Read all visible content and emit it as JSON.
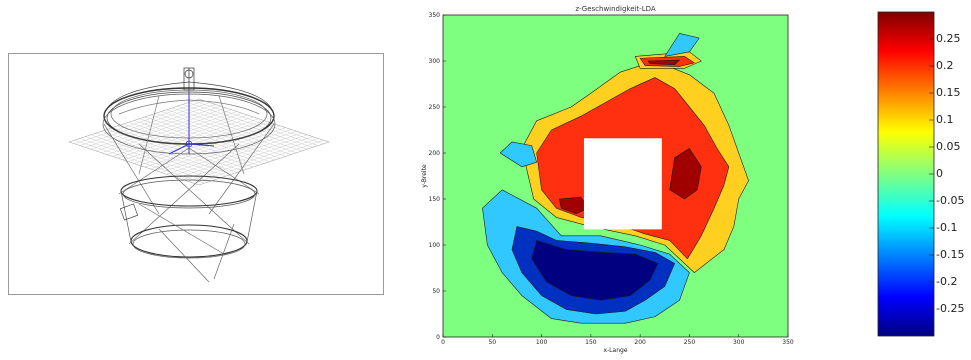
{
  "wireframe_figure": {
    "description_icon": "wireframe-apparatus-icon"
  },
  "chart_data": [
    {
      "type": "heatmap",
      "title": "z-Geschwindigkeit-LDA",
      "xlabel": "x-Lange",
      "ylabel": "y-Breite",
      "xlim": [
        0,
        350
      ],
      "ylim": [
        0,
        350
      ],
      "x_ticks": [
        0,
        50,
        100,
        150,
        200,
        250,
        300,
        350
      ],
      "y_ticks": [
        0,
        50,
        100,
        150,
        200,
        250,
        300,
        350
      ],
      "grid": false,
      "background_color": "#7fff7f",
      "no_data_region": {
        "x": [
          143,
          222
        ],
        "y": [
          117,
          216
        ]
      },
      "regions": [
        {
          "level": 0.05,
          "color": "#ffd020",
          "polygon": [
            [
              92,
              150
            ],
            [
              80,
              205
            ],
            [
              95,
              235
            ],
            [
              130,
              250
            ],
            [
              150,
              265
            ],
            [
              180,
              288
            ],
            [
              215,
              300
            ],
            [
              250,
              285
            ],
            [
              275,
              265
            ],
            [
              290,
              230
            ],
            [
              300,
              200
            ],
            [
              310,
              170
            ],
            [
              300,
              150
            ],
            [
              295,
              120
            ],
            [
              285,
              95
            ],
            [
              255,
              70
            ],
            [
              225,
              100
            ],
            [
              195,
              110
            ],
            [
              150,
              120
            ],
            [
              115,
              130
            ]
          ]
        },
        {
          "level": 0.05,
          "color": "#ffd020",
          "polygon": [
            [
              195,
              305
            ],
            [
              250,
              310
            ],
            [
              262,
              300
            ],
            [
              245,
              292
            ],
            [
              200,
              292
            ]
          ]
        },
        {
          "level": 0.2,
          "color": "#ff3010",
          "polygon": [
            [
              100,
              160
            ],
            [
              95,
              200
            ],
            [
              110,
              225
            ],
            [
              140,
              240
            ],
            [
              165,
              255
            ],
            [
              190,
              270
            ],
            [
              215,
              282
            ],
            [
              235,
              270
            ],
            [
              250,
              250
            ],
            [
              265,
              230
            ],
            [
              278,
              205
            ],
            [
              290,
              185
            ],
            [
              285,
              165
            ],
            [
              275,
              140
            ],
            [
              262,
              110
            ],
            [
              248,
              85
            ],
            [
              230,
              105
            ],
            [
              205,
              112
            ],
            [
              170,
              125
            ],
            [
              140,
              130
            ],
            [
              115,
              140
            ]
          ]
        },
        {
          "level": 0.2,
          "color": "#ff3010",
          "polygon": [
            [
              200,
              303
            ],
            [
              245,
              305
            ],
            [
              255,
              298
            ],
            [
              240,
              294
            ],
            [
              205,
              295
            ]
          ]
        },
        {
          "level": 0.28,
          "color": "#a00000",
          "polygon": [
            [
              230,
              160
            ],
            [
              235,
              195
            ],
            [
              250,
              205
            ],
            [
              262,
              185
            ],
            [
              258,
              160
            ],
            [
              245,
              150
            ]
          ]
        },
        {
          "level": 0.28,
          "color": "#a00000",
          "polygon": [
            [
              120,
              140
            ],
            [
              118,
              150
            ],
            [
              140,
              152
            ],
            [
              148,
              140
            ],
            [
              135,
              134
            ]
          ]
        },
        {
          "level": 0.28,
          "color": "#a00000",
          "polygon": [
            [
              208,
              300
            ],
            [
              240,
              301
            ],
            [
              235,
              296
            ],
            [
              210,
              297
            ]
          ]
        },
        {
          "level": -0.05,
          "color": "#30c8ff",
          "polygon": [
            [
              60,
              160
            ],
            [
              40,
              140
            ],
            [
              45,
              100
            ],
            [
              60,
              70
            ],
            [
              80,
              45
            ],
            [
              110,
              20
            ],
            [
              140,
              15
            ],
            [
              185,
              15
            ],
            [
              215,
              22
            ],
            [
              240,
              40
            ],
            [
              250,
              70
            ],
            [
              230,
              90
            ],
            [
              200,
              100
            ],
            [
              160,
              110
            ],
            [
              120,
              110
            ],
            [
              95,
              140
            ]
          ]
        },
        {
          "level": -0.05,
          "color": "#30c8ff",
          "polygon": [
            [
              225,
              305
            ],
            [
              250,
              310
            ],
            [
              260,
              325
            ],
            [
              240,
              330
            ]
          ]
        },
        {
          "level": -0.05,
          "color": "#30c8ff",
          "polygon": [
            [
              58,
              200
            ],
            [
              70,
              212
            ],
            [
              90,
              208
            ],
            [
              95,
              190
            ],
            [
              80,
              185
            ]
          ]
        },
        {
          "level": -0.2,
          "color": "#0030c0",
          "polygon": [
            [
              75,
              120
            ],
            [
              70,
              95
            ],
            [
              80,
              70
            ],
            [
              100,
              45
            ],
            [
              125,
              30
            ],
            [
              155,
              25
            ],
            [
              185,
              28
            ],
            [
              205,
              40
            ],
            [
              225,
              55
            ],
            [
              235,
              80
            ],
            [
              215,
              92
            ],
            [
              185,
              98
            ],
            [
              150,
              102
            ],
            [
              115,
              105
            ],
            [
              95,
              115
            ]
          ]
        },
        {
          "level": -0.28,
          "color": "#000080",
          "polygon": [
            [
              95,
              105
            ],
            [
              90,
              85
            ],
            [
              105,
              60
            ],
            [
              130,
              45
            ],
            [
              160,
              40
            ],
            [
              190,
              45
            ],
            [
              210,
              62
            ],
            [
              218,
              80
            ],
            [
              195,
              90
            ],
            [
              160,
              92
            ],
            [
              125,
              95
            ]
          ]
        }
      ]
    },
    {
      "type": "heatmap",
      "title": "",
      "colorbar": {
        "vmin": -0.3,
        "vmax": 0.3,
        "tick_labels": [
          "0.25",
          "0.2",
          "0.15",
          "0.1",
          "0.05",
          "0",
          "-0.05",
          "-0.1",
          "-0.15",
          "-0.2",
          "-0.25"
        ],
        "tick_values": [
          0.25,
          0.2,
          0.15,
          0.1,
          0.05,
          0,
          -0.05,
          -0.1,
          -0.15,
          -0.2,
          -0.25
        ],
        "colormap": "jet"
      }
    }
  ]
}
